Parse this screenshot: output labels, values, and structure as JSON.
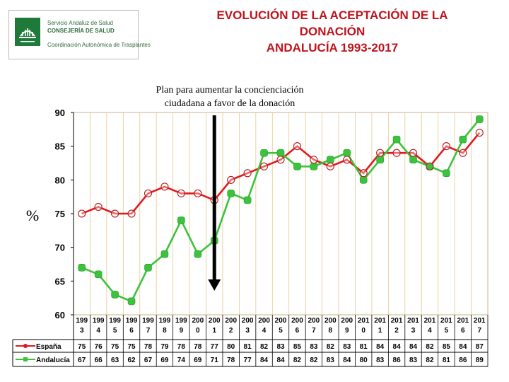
{
  "logo": {
    "line1": "Servicio Andaluz de Salud",
    "line2": "CONSEJERÍA DE SALUD",
    "line3": "Coordinación Autonómica de Trasplantes",
    "icon": "junta-andalucia-shield-icon"
  },
  "title_lines": [
    "EVOLUCIÓN DE LA ACEPTACIÓN DE LA",
    "DONACIÓN",
    "ANDALUCÍA 1993-2017"
  ],
  "annotation_lines": [
    "Plan para aumentar la concienciación",
    "ciudadana a favor de la donación"
  ],
  "colors": {
    "title": "#c1121c",
    "espana": "#e0191e",
    "andalucia": "#3cc23c",
    "grid": "#e8c88e",
    "arrow": "#000000"
  },
  "chart_data": {
    "type": "line",
    "ylabel": "%",
    "ylim": [
      60,
      90
    ],
    "yticks": [
      60,
      65,
      70,
      75,
      80,
      85,
      90
    ],
    "x": [
      1993,
      1994,
      1995,
      1996,
      1997,
      1998,
      1999,
      2000,
      2001,
      2002,
      2003,
      2004,
      2005,
      2006,
      2007,
      2008,
      2009,
      2010,
      2011,
      2012,
      2013,
      2014,
      2015,
      2016,
      2017
    ],
    "x_labels": [
      [
        "199",
        "3"
      ],
      [
        "199",
        "4"
      ],
      [
        "199",
        "5"
      ],
      [
        "199",
        "6"
      ],
      [
        "199",
        "7"
      ],
      [
        "199",
        "8"
      ],
      [
        "199",
        "9"
      ],
      [
        "200",
        "0"
      ],
      [
        "200",
        "1"
      ],
      [
        "200",
        "2"
      ],
      [
        "200",
        "3"
      ],
      [
        "200",
        "4"
      ],
      [
        "200",
        "5"
      ],
      [
        "200",
        "6"
      ],
      [
        "200",
        "7"
      ],
      [
        "200",
        "8"
      ],
      [
        "200",
        "9"
      ],
      [
        "201",
        "0"
      ],
      [
        "201",
        "1"
      ],
      [
        "201",
        "2"
      ],
      [
        "201",
        "3"
      ],
      [
        "201",
        "4"
      ],
      [
        "201",
        "5"
      ],
      [
        "201",
        "6"
      ],
      [
        "201",
        "7"
      ]
    ],
    "arrow_at": 2001,
    "grid": true,
    "legend": "table-below",
    "series": [
      {
        "name": "España",
        "values": [
          75,
          76,
          75,
          75,
          78,
          79,
          78,
          78,
          77,
          80,
          81,
          82,
          83,
          85,
          83,
          82,
          83,
          81,
          84,
          84,
          84,
          82,
          85,
          84,
          87
        ]
      },
      {
        "name": "Andalucía",
        "values": [
          67,
          66,
          63,
          62,
          67,
          69,
          74,
          69,
          71,
          78,
          77,
          84,
          84,
          82,
          82,
          83,
          84,
          80,
          83,
          86,
          83,
          82,
          81,
          86,
          89
        ]
      }
    ]
  }
}
